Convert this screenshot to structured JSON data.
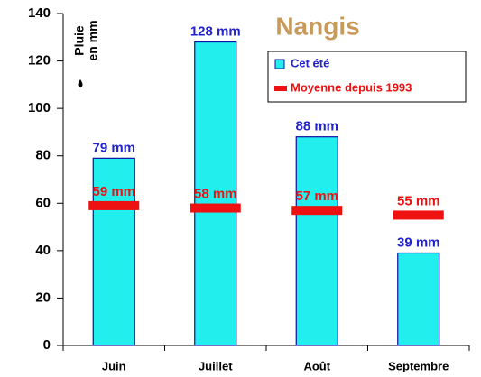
{
  "chart_data": {
    "type": "bar",
    "title": "Nangis",
    "ylabel": [
      "Pluie",
      "en mm"
    ],
    "categories": [
      "Juin",
      "Juillet",
      "Août",
      "Septembre"
    ],
    "series": [
      {
        "name": "Cet été",
        "type": "bar",
        "color": "#22eeee",
        "label_color": "#2222cc",
        "values": [
          79,
          128,
          88,
          null
        ],
        "value_labels": [
          "79 mm",
          "128 mm",
          "88 mm",
          null
        ]
      },
      {
        "name": "Moyenne depuis 1993",
        "type": "level",
        "color": "#ee1111",
        "label_color": "#ee1111",
        "values": [
          59,
          58,
          57,
          55
        ],
        "value_labels": [
          "59 mm",
          "58 mm",
          "57 mm",
          "55 mm"
        ]
      }
    ],
    "extra_bar": {
      "category": 3,
      "value": 39,
      "label": "39 mm"
    },
    "ylim": [
      0,
      140
    ],
    "yticks": [
      0,
      20,
      40,
      60,
      80,
      100,
      120,
      140
    ]
  }
}
